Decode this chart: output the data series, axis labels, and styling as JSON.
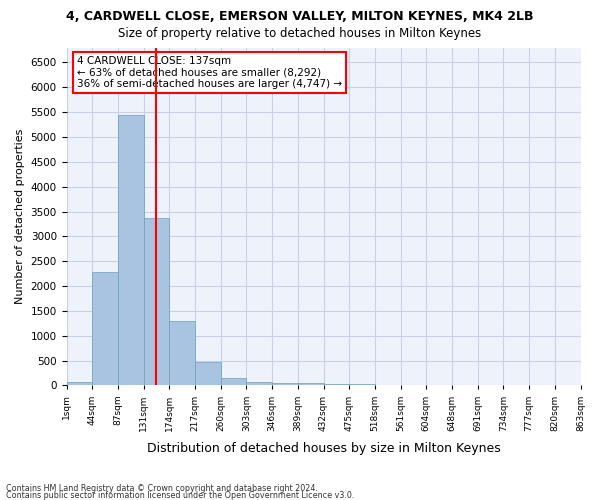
{
  "title1": "4, CARDWELL CLOSE, EMERSON VALLEY, MILTON KEYNES, MK4 2LB",
  "title2": "Size of property relative to detached houses in Milton Keynes",
  "xlabel": "Distribution of detached houses by size in Milton Keynes",
  "ylabel": "Number of detached properties",
  "bar_values": [
    75,
    2275,
    5450,
    3375,
    1300,
    480,
    155,
    80,
    55,
    55,
    30,
    20,
    10,
    5,
    5,
    5,
    5,
    5,
    5,
    5
  ],
  "bin_labels": [
    "1sqm",
    "44sqm",
    "87sqm",
    "131sqm",
    "174sqm",
    "217sqm",
    "260sqm",
    "303sqm",
    "346sqm",
    "389sqm",
    "432sqm",
    "475sqm",
    "518sqm",
    "561sqm",
    "604sqm",
    "648sqm",
    "691sqm",
    "734sqm",
    "777sqm",
    "820sqm",
    "863sqm"
  ],
  "bar_color": "#a8c4e0",
  "bar_edgecolor": "#6a9fc0",
  "vline_x": 3,
  "vline_color": "red",
  "annotation_text": "4 CARDWELL CLOSE: 137sqm\n← 63% of detached houses are smaller (8,292)\n36% of semi-detached houses are larger (4,747) →",
  "annotation_box_color": "white",
  "annotation_box_edgecolor": "red",
  "ylim": [
    0,
    6800
  ],
  "yticks": [
    0,
    500,
    1000,
    1500,
    2000,
    2500,
    3000,
    3500,
    4000,
    4500,
    5000,
    5500,
    6000,
    6500
  ],
  "footer1": "Contains HM Land Registry data © Crown copyright and database right 2024.",
  "footer2": "Contains public sector information licensed under the Open Government Licence v3.0.",
  "bg_color": "#eef2fb",
  "grid_color": "#c8d0e8"
}
